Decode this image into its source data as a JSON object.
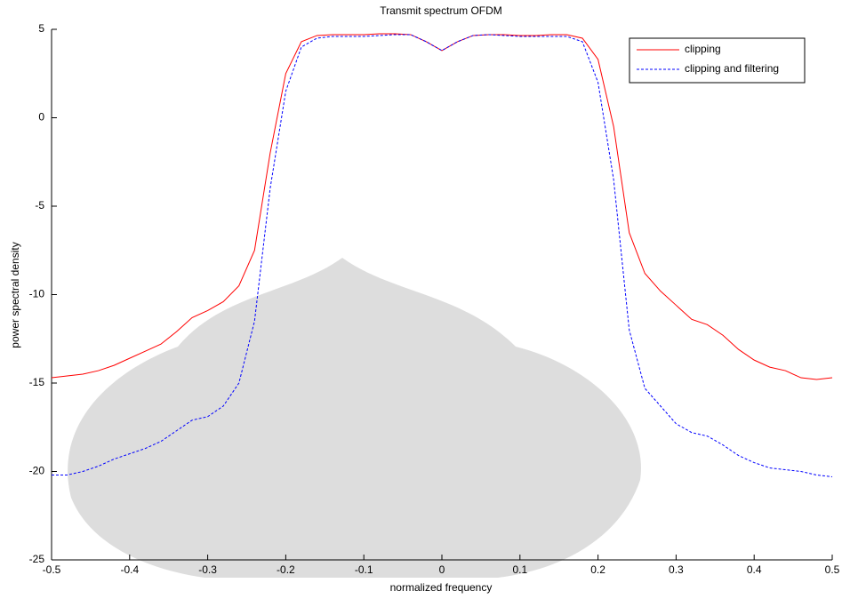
{
  "chart_data": {
    "type": "line",
    "title": "Transmit spectrum OFDM",
    "xlabel": "normalized frequency",
    "ylabel": "power spectral density",
    "x": [
      -0.5,
      -0.48,
      -0.46,
      -0.44,
      -0.42,
      -0.4,
      -0.38,
      -0.36,
      -0.34,
      -0.32,
      -0.3,
      -0.28,
      -0.26,
      -0.24,
      -0.22,
      -0.2,
      -0.18,
      -0.16,
      -0.14,
      -0.12,
      -0.1,
      -0.08,
      -0.06,
      -0.04,
      -0.02,
      0,
      0.02,
      0.04,
      0.06,
      0.08,
      0.1,
      0.12,
      0.14,
      0.16,
      0.18,
      0.2,
      0.22,
      0.24,
      0.26,
      0.28,
      0.3,
      0.32,
      0.34,
      0.36,
      0.38,
      0.4,
      0.42,
      0.44,
      0.46,
      0.48,
      0.5
    ],
    "series": [
      {
        "name": "clipping",
        "color": "#ff0000",
        "dash": false,
        "values": [
          -14.7,
          -14.6,
          -14.5,
          -14.3,
          -14.0,
          -13.6,
          -13.2,
          -12.8,
          -12.1,
          -11.3,
          -10.9,
          -10.4,
          -9.5,
          -7.5,
          -2.0,
          2.5,
          4.3,
          4.65,
          4.7,
          4.7,
          4.7,
          4.75,
          4.75,
          4.7,
          4.3,
          3.8,
          4.3,
          4.65,
          4.7,
          4.7,
          4.65,
          4.65,
          4.7,
          4.7,
          4.5,
          3.3,
          -0.5,
          -6.5,
          -8.8,
          -9.8,
          -10.6,
          -11.4,
          -11.7,
          -12.3,
          -13.1,
          -13.7,
          -14.1,
          -14.3,
          -14.7,
          -14.8,
          -14.7
        ]
      },
      {
        "name": "clipping and filtering",
        "color": "#0000ff",
        "dash": true,
        "values": [
          -20.2,
          -20.2,
          -20.0,
          -19.7,
          -19.3,
          -19.0,
          -18.7,
          -18.3,
          -17.7,
          -17.1,
          -16.9,
          -16.3,
          -15.0,
          -11.5,
          -4.0,
          1.5,
          4.0,
          4.5,
          4.6,
          4.6,
          4.6,
          4.65,
          4.7,
          4.7,
          4.3,
          3.8,
          4.3,
          4.65,
          4.7,
          4.65,
          4.6,
          4.6,
          4.6,
          4.6,
          4.3,
          2.0,
          -3.5,
          -12.0,
          -15.3,
          -16.3,
          -17.3,
          -17.8,
          -18.0,
          -18.5,
          -19.1,
          -19.5,
          -19.8,
          -19.9,
          -20.0,
          -20.2,
          -20.3
        ]
      }
    ],
    "xlim": [
      -0.5,
      0.5
    ],
    "xticks": [
      -0.5,
      -0.4,
      -0.3,
      -0.2,
      -0.1,
      0,
      0.1,
      0.2,
      0.3,
      0.4,
      0.5
    ],
    "ylim": [
      -25,
      5
    ],
    "yticks": [
      -25,
      -20,
      -15,
      -10,
      -5,
      0,
      5
    ],
    "grid": false,
    "legend": "upper right"
  }
}
